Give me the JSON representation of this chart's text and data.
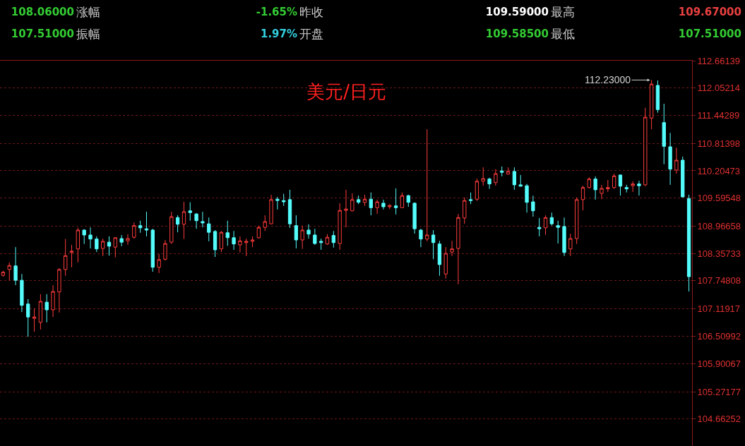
{
  "chart_data": {
    "type": "candlestick",
    "title": "美元/日元",
    "annotations": [
      "108.06000",
      "涨幅",
      "-1.65%",
      "昨收",
      "109.59000",
      "最高",
      "109.67000",
      "107.51000",
      "振幅",
      "1.97%",
      "开盘",
      "109.58500",
      "最低",
      "107.51000",
      "112.23000"
    ],
    "categories": [
      null,
      null,
      null,
      null,
      null,
      null,
      null,
      null,
      null,
      null,
      null,
      null,
      null,
      null,
      null,
      null,
      null,
      null,
      null,
      null,
      null,
      null,
      null,
      null,
      null,
      null,
      null,
      null,
      null,
      null,
      null,
      null,
      null,
      null,
      null,
      null,
      null,
      null,
      null,
      null,
      null,
      null,
      null,
      null,
      null,
      null,
      null,
      null,
      null,
      null,
      null,
      null,
      null,
      null,
      null,
      null,
      null,
      null,
      null,
      null,
      null,
      null,
      null,
      null,
      null,
      null,
      null,
      null,
      null,
      null,
      null,
      null,
      null,
      null,
      null,
      null,
      null,
      null,
      null,
      null,
      null,
      null,
      null,
      null,
      null,
      null,
      null,
      null,
      null,
      null,
      null,
      null,
      null,
      null,
      null,
      null,
      null,
      null,
      null,
      null,
      null,
      null,
      null,
      null,
      null,
      null,
      null,
      null,
      null,
      null,
      null
    ],
    "ohlc": [
      [
        107.87,
        107.97,
        107.84,
        107.94
      ],
      [
        108.0,
        108.16,
        107.76,
        108.09
      ],
      [
        108.08,
        108.5,
        107.65,
        107.76
      ],
      [
        107.76,
        107.9,
        107.05,
        107.2
      ],
      [
        107.23,
        107.34,
        106.5,
        106.94
      ],
      [
        106.91,
        107.13,
        106.61,
        106.94
      ],
      [
        106.82,
        107.45,
        106.66,
        107.29
      ],
      [
        107.27,
        107.45,
        106.82,
        107.1
      ],
      [
        107.1,
        107.65,
        106.94,
        107.51
      ],
      [
        107.5,
        108.03,
        107.04,
        108.0
      ],
      [
        108.0,
        108.68,
        107.86,
        108.31
      ],
      [
        108.38,
        108.55,
        108.05,
        108.41
      ],
      [
        108.46,
        108.93,
        108.16,
        108.88
      ],
      [
        108.88,
        108.9,
        108.57,
        108.77
      ],
      [
        108.77,
        108.94,
        108.47,
        108.68
      ],
      [
        108.68,
        108.74,
        108.39,
        108.46
      ],
      [
        108.47,
        108.69,
        108.3,
        108.63
      ],
      [
        108.61,
        108.74,
        108.31,
        108.52
      ],
      [
        108.5,
        108.72,
        108.27,
        108.71
      ],
      [
        108.69,
        108.77,
        108.52,
        108.61
      ],
      [
        108.64,
        108.79,
        108.55,
        108.69
      ],
      [
        108.72,
        109.05,
        108.69,
        108.98
      ],
      [
        108.98,
        109.09,
        108.82,
        108.93
      ],
      [
        108.91,
        109.29,
        108.74,
        108.88
      ],
      [
        108.88,
        108.91,
        107.95,
        108.05
      ],
      [
        108.05,
        108.35,
        107.92,
        108.22
      ],
      [
        108.23,
        108.66,
        108.2,
        108.58
      ],
      [
        108.61,
        109.29,
        108.57,
        109.18
      ],
      [
        109.16,
        109.21,
        108.83,
        109.01
      ],
      [
        109.01,
        109.51,
        108.68,
        109.29
      ],
      [
        109.31,
        109.5,
        109.09,
        109.27
      ],
      [
        109.24,
        109.26,
        108.91,
        109.09
      ],
      [
        109.07,
        109.29,
        108.94,
        109.04
      ],
      [
        109.02,
        109.16,
        108.63,
        108.83
      ],
      [
        108.85,
        108.88,
        108.28,
        108.44
      ],
      [
        108.46,
        108.86,
        108.39,
        108.83
      ],
      [
        108.82,
        109.09,
        108.53,
        108.71
      ],
      [
        108.71,
        108.86,
        108.44,
        108.57
      ],
      [
        108.55,
        108.74,
        108.38,
        108.64
      ],
      [
        108.6,
        108.69,
        108.3,
        108.63
      ],
      [
        108.63,
        108.74,
        108.5,
        108.66
      ],
      [
        108.71,
        108.98,
        108.69,
        108.94
      ],
      [
        108.94,
        109.21,
        108.86,
        109.07
      ],
      [
        109.02,
        109.67,
        109.01,
        109.56
      ],
      [
        109.57,
        109.62,
        109.34,
        109.54
      ],
      [
        109.54,
        109.69,
        109.42,
        109.51
      ],
      [
        109.56,
        109.78,
        108.93,
        109.02
      ],
      [
        108.98,
        109.21,
        108.47,
        108.66
      ],
      [
        108.66,
        108.98,
        108.46,
        108.88
      ],
      [
        108.88,
        109.01,
        108.69,
        108.79
      ],
      [
        108.77,
        108.91,
        108.55,
        108.58
      ],
      [
        108.63,
        108.69,
        108.44,
        108.6
      ],
      [
        108.57,
        108.79,
        108.55,
        108.72
      ],
      [
        108.76,
        108.86,
        108.49,
        108.6
      ],
      [
        108.58,
        109.48,
        108.44,
        109.32
      ],
      [
        109.32,
        109.78,
        108.94,
        109.35
      ],
      [
        109.31,
        109.7,
        109.3,
        109.56
      ],
      [
        109.56,
        109.65,
        109.46,
        109.5
      ],
      [
        109.5,
        109.67,
        109.42,
        109.57
      ],
      [
        109.57,
        109.72,
        109.21,
        109.38
      ],
      [
        109.38,
        109.56,
        109.24,
        109.51
      ],
      [
        109.48,
        109.56,
        109.34,
        109.4
      ],
      [
        109.4,
        109.46,
        109.35,
        109.43
      ],
      [
        109.42,
        109.81,
        109.23,
        109.38
      ],
      [
        109.38,
        109.72,
        109.37,
        109.65
      ],
      [
        109.65,
        109.67,
        109.4,
        109.5
      ],
      [
        109.48,
        109.5,
        108.8,
        108.91
      ],
      [
        108.88,
        108.91,
        108.5,
        108.68
      ],
      [
        108.68,
        111.13,
        108.63,
        108.77
      ],
      [
        108.77,
        108.88,
        108.23,
        108.6
      ],
      [
        108.57,
        108.64,
        107.86,
        108.11
      ],
      [
        107.9,
        108.5,
        107.8,
        108.36
      ],
      [
        108.39,
        108.64,
        108.3,
        108.46
      ],
      [
        108.47,
        109.24,
        107.67,
        109.16
      ],
      [
        109.15,
        109.61,
        109.02,
        109.54
      ],
      [
        109.56,
        109.72,
        109.46,
        109.54
      ],
      [
        109.57,
        110.03,
        109.53,
        109.97
      ],
      [
        109.97,
        110.28,
        109.87,
        110.03
      ],
      [
        110.02,
        110.05,
        109.8,
        109.91
      ],
      [
        109.94,
        110.24,
        109.87,
        110.14
      ],
      [
        110.2,
        110.3,
        110.08,
        110.17
      ],
      [
        110.13,
        110.28,
        110.12,
        110.19
      ],
      [
        110.19,
        110.28,
        109.78,
        109.89
      ],
      [
        109.89,
        110.11,
        109.85,
        109.86
      ],
      [
        109.87,
        109.91,
        109.27,
        109.5
      ],
      [
        109.51,
        109.65,
        109.18,
        109.31
      ],
      [
        108.94,
        109.15,
        108.74,
        108.91
      ],
      [
        108.93,
        109.21,
        108.77,
        109.16
      ],
      [
        109.16,
        109.27,
        108.98,
        109.02
      ],
      [
        108.98,
        109.09,
        108.58,
        108.94
      ],
      [
        108.96,
        109.16,
        108.3,
        108.38
      ],
      [
        108.46,
        108.8,
        108.3,
        108.69
      ],
      [
        108.69,
        109.61,
        108.57,
        109.56
      ],
      [
        109.56,
        109.87,
        109.32,
        109.83
      ],
      [
        109.83,
        110.06,
        109.81,
        110.02
      ],
      [
        110.02,
        110.08,
        109.56,
        109.78
      ],
      [
        109.7,
        109.89,
        109.57,
        109.81
      ],
      [
        109.8,
        110.0,
        109.73,
        109.83
      ],
      [
        109.83,
        110.14,
        109.8,
        110.09
      ],
      [
        110.11,
        110.12,
        109.65,
        109.86
      ],
      [
        109.83,
        109.89,
        109.72,
        109.8
      ],
      [
        109.87,
        109.97,
        109.73,
        109.91
      ],
      [
        109.91,
        109.98,
        109.65,
        109.87
      ],
      [
        109.89,
        111.61,
        109.86,
        111.4
      ],
      [
        111.38,
        112.23,
        111.13,
        112.14
      ],
      [
        112.11,
        112.22,
        111.5,
        111.57
      ],
      [
        111.28,
        111.7,
        110.35,
        110.75
      ],
      [
        110.74,
        111.05,
        109.89,
        110.24
      ],
      [
        110.22,
        110.72,
        110.14,
        110.44
      ],
      [
        110.44,
        110.52,
        109.61,
        109.62
      ],
      [
        109.585,
        109.67,
        107.51,
        107.84
      ]
    ],
    "colors": [
      "#ff3c3c",
      "#ff3c3c",
      "#54fcfc",
      "#54fcfc",
      "#54fcfc",
      "#ff3c3c",
      "#ff3c3c",
      "#54fcfc",
      "#ff3c3c",
      "#ff3c3c",
      "#ff3c3c",
      "#ff3c3c",
      "#ff3c3c",
      "#54fcfc",
      "#54fcfc",
      "#54fcfc",
      "#ff3c3c",
      "#54fcfc",
      "#ff3c3c",
      "#54fcfc",
      "#ff3c3c",
      "#ff3c3c",
      "#54fcfc",
      "#54fcfc",
      "#54fcfc",
      "#ff3c3c",
      "#ff3c3c",
      "#ff3c3c",
      "#54fcfc",
      "#ff3c3c",
      "#54fcfc",
      "#54fcfc",
      "#54fcfc",
      "#54fcfc",
      "#54fcfc",
      "#ff3c3c",
      "#54fcfc",
      "#54fcfc",
      "#ff3c3c",
      "#ff3c3c",
      "#ff3c3c",
      "#ff3c3c",
      "#ff3c3c",
      "#ff3c3c",
      "#54fcfc",
      "#54fcfc",
      "#54fcfc",
      "#54fcfc",
      "#ff3c3c",
      "#54fcfc",
      "#54fcfc",
      "#54fcfc",
      "#ff3c3c",
      "#54fcfc",
      "#ff3c3c",
      "#ff3c3c",
      "#ff3c3c",
      "#54fcfc",
      "#ff3c3c",
      "#54fcfc",
      "#ff3c3c",
      "#54fcfc",
      "#ff3c3c",
      "#54fcfc",
      "#ff3c3c",
      "#54fcfc",
      "#54fcfc",
      "#54fcfc",
      "#ff3c3c",
      "#54fcfc",
      "#54fcfc",
      "#ff3c3c",
      "#ff3c3c",
      "#ff3c3c",
      "#ff3c3c",
      "#54fcfc",
      "#ff3c3c",
      "#ff3c3c",
      "#54fcfc",
      "#ff3c3c",
      "#54fcfc",
      "#ff3c3c",
      "#54fcfc",
      "#54fcfc",
      "#54fcfc",
      "#54fcfc",
      "#54fcfc",
      "#ff3c3c",
      "#54fcfc",
      "#54fcfc",
      "#54fcfc",
      "#ff3c3c",
      "#ff3c3c",
      "#ff3c3c",
      "#ff3c3c",
      "#54fcfc",
      "#ff3c3c",
      "#ff3c3c",
      "#ff3c3c",
      "#54fcfc",
      "#54fcfc",
      "#ff3c3c",
      "#54fcfc",
      "#ff3c3c",
      "#ff3c3c",
      "#54fcfc",
      "#54fcfc",
      "#54fcfc",
      "#ff3c3c",
      "#54fcfc",
      "#54fcfc"
    ],
    "ylim": [
      104.06,
      112.66139
    ],
    "yticks": [
      112.66139,
      112.05214,
      111.44289,
      110.81398,
      110.20473,
      109.59548,
      108.96658,
      108.35733,
      107.74808,
      107.11917,
      106.50992,
      105.90067,
      105.27177,
      104.66252
    ],
    "grid": "y",
    "tick_labels": "y"
  }
}
